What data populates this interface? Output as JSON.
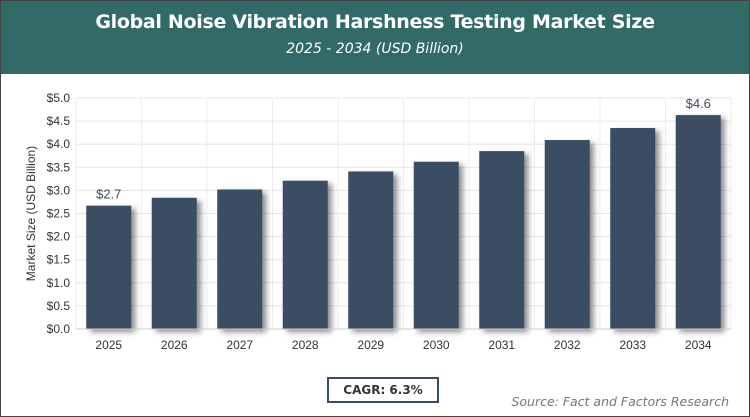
{
  "chart_data": {
    "type": "bar",
    "title": "Global Noise Vibration Harshness Testing Market Size",
    "subtitle": "2025 - 2034 (USD Billion)",
    "xlabel": "",
    "ylabel": "Market Size (USD Billion)",
    "categories": [
      "2025",
      "2026",
      "2027",
      "2028",
      "2029",
      "2030",
      "2031",
      "2032",
      "2033",
      "2034"
    ],
    "values": [
      2.67,
      2.84,
      3.02,
      3.21,
      3.41,
      3.62,
      3.85,
      4.09,
      4.35,
      4.63
    ],
    "data_labels": {
      "0": "$2.7",
      "9": "$4.6"
    },
    "ylim": [
      0,
      5
    ],
    "yticks": [
      "$0.0",
      "$0.5",
      "$1.0",
      "$1.5",
      "$2.0",
      "$2.5",
      "$3.0",
      "$3.5",
      "$4.0",
      "$4.5",
      "$5.0"
    ],
    "grid": true,
    "bar_color": "#3a4d63",
    "header_color": "#316a66"
  },
  "cagr": "CAGR: 6.3%",
  "source": "Source: Fact and Factors Research"
}
